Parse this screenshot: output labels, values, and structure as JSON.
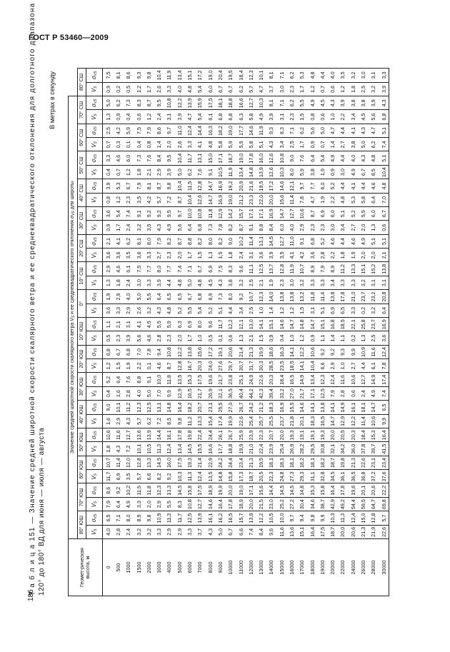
{
  "header": {
    "standard": "ГОСТ Р 53460—2009"
  },
  "page_number": "186",
  "caption": {
    "line1": "Т а б л и ц а 151 — Значение средней широтной скорости скалярного ветра и ее среднеквадратического отклонения для долготного диапазона от",
    "line2": "120° до 180° ВД для июня — июля — августа"
  },
  "units": "В метрах в секунду",
  "table": {
    "height_header": "Геомет-рическая высота, м",
    "group_header_prefix": "Значение средней широтной скорости скалярного ветра",
    "group_header_middle": "и ее среднеквадратического отклонения",
    "group_header_suffix": "для широты",
    "vs_symbol": "V",
    "vs_sub": "S",
    "sigma_symbol": "σ",
    "sigma_sub": "VS",
    "heights": [
      "0",
      "500",
      "1000",
      "1500",
      "2000",
      "3000",
      "4000",
      "5000",
      "6000",
      "7000",
      "8000",
      "9000",
      "10000",
      "11000",
      "12000",
      "13000",
      "14000",
      "15000",
      "16000",
      "17000",
      "18000",
      "19000",
      "20000",
      "22000",
      "24000",
      "26000",
      "28000",
      "30000"
    ],
    "latitudes": [
      {
        "label": "80° ЮШ",
        "vs": [
          "4,0",
          "2,8",
          "2,4",
          "3,2",
          "3,2",
          "3,3",
          "2,9",
          "2,9",
          "3,3",
          "3,7",
          "4,3",
          "5,0",
          "6,7",
          "6,6",
          "7,4",
          "8,4",
          "9,6",
          "11,6",
          "13,6",
          "15,1",
          "16,4",
          "17,5",
          "18,7",
          "20,0",
          "20,6",
          "21,3",
          "21,9",
          "22,6"
        ],
        "sigma": [
          "6,5",
          "7,1",
          "8,0",
          "8,9",
          "9,8",
          "10,9",
          "11,3",
          "11,7",
          "12,5",
          "13,9",
          "16,1",
          "16,2",
          "16,5",
          "15,7",
          "13,9",
          "12,2",
          "10,5",
          "10,0",
          "9,7",
          "9,4",
          "9,8",
          "9,9",
          "10,3",
          "11,3",
          "12,4",
          "15,0",
          "12,8",
          "5,7"
        ]
      },
      {
        "label": "70° ЮШ",
        "vs": [
          "7,9",
          "6,4",
          "4,9",
          "3,3",
          "2,0",
          "2,9",
          "5,5",
          "8,3",
          "10,8",
          "12,7",
          "14,6",
          "16,4",
          "17,8",
          "18,9",
          "20,0",
          "21,5",
          "23,0",
          "25,2",
          "27,2",
          "30,4",
          "34,6",
          "38,7",
          "42,9",
          "49,2",
          "54,4",
          "59,5",
          "64,7",
          "69,8"
        ],
        "sigma": [
          "8,6",
          "9,2",
          "10,2",
          "11,5",
          "11,8",
          "12,3",
          "13,3",
          "14,5",
          "15,8",
          "17,5",
          "18,9",
          "19,9",
          "20,0",
          "19,0",
          "17,1",
          "15,6",
          "14,4",
          "14,5",
          "14,5",
          "14,8",
          "15,3",
          "15,8",
          "16,4",
          "17,8",
          "19,6",
          "20,1",
          "20,6",
          "22,2"
        ]
      },
      {
        "label": "60° ЮШ",
        "vs": [
          "11,7",
          "6,9",
          "3,5",
          "5,7",
          "6,6",
          "8,2",
          "9,2",
          "10,3",
          "11,3",
          "12,4",
          "13,5",
          "14,8",
          "15,8",
          "17,3",
          "18,7",
          "20,5",
          "22,3",
          "24,8",
          "27,3",
          "29,3",
          "31,1",
          "32,8",
          "34,5",
          "36,1",
          "36,5",
          "36,8",
          "37,2",
          "37,6"
        ],
        "sigma": [
          "10,7",
          "11,4",
          "12,0",
          "12,8",
          "13,3",
          "14,5",
          "16,0",
          "17,5",
          "19,3",
          "21,4",
          "22,9",
          "24,2",
          "24,4",
          "23,4",
          "21,3",
          "19,5",
          "18,1",
          "18,1",
          "18,1",
          "18,2",
          "18,1",
          "18,2",
          "18,7",
          "19,8",
          "21,3",
          "22,6",
          "23,1",
          "23,4"
        ]
      },
      {
        "label": "50° ЮШ",
        "vs": [
          "1,8",
          "4,3",
          "7,2",
          "10,1",
          "10,5",
          "11,3",
          "12,4",
          "13,4",
          "14,5",
          "15,5",
          "16,6",
          "17,7",
          "18,8",
          "19,9",
          "21,0",
          "22,4",
          "23,9",
          "25,4",
          "26,9",
          "28,2",
          "29,5",
          "30,8",
          "32,1",
          "34,2",
          "36,0",
          "37,8",
          "39,7",
          "41,5"
        ],
        "sigma": [
          "10,6",
          "11,6",
          "12,7",
          "13,6",
          "13,9",
          "14,4",
          "16,1",
          "17,8",
          "19,8",
          "22,4",
          "24,4",
          "26,1",
          "26,7",
          "25,9",
          "23,9",
          "22,3",
          "20,7",
          "20,0",
          "19,3",
          "19,1",
          "19,1",
          "19,3",
          "20,0",
          "20,5",
          "20,3",
          "18,4",
          "15,3",
          "16,4"
        ]
      },
      {
        "label": "40° ЮШ",
        "vs": [
          "1,6",
          "2,9",
          "4,3",
          "5,7",
          "6,2",
          "7,2",
          "8,5",
          "9,8",
          "11,2",
          "13,3",
          "15,4",
          "17,4",
          "19,9",
          "22,6",
          "25,4",
          "25,7",
          "25,5",
          "23,7",
          "21,8",
          "20,1",
          "18,3",
          "16,5",
          "14,7",
          "12,9",
          "12,2",
          "11,4",
          "10,6",
          "9,9"
        ],
        "sigma": [
          "9,0",
          "10,1",
          "11,2",
          "12,3",
          "12,5",
          "13,1",
          "14,8",
          "16,4",
          "18,2",
          "20,7",
          "23,1",
          "25,5",
          "27,0",
          "26,7",
          "24,2",
          "21,2",
          "18,3",
          "16,9",
          "15,5",
          "14,6",
          "14,1",
          "13,8",
          "14,1",
          "14,9",
          "16,1",
          "18,1",
          "14,7",
          "6,5"
        ]
      },
      {
        "label": "30° ЮШ",
        "vs": [
          "0,4",
          "1,6",
          "2,8",
          "4,0",
          "5,0",
          "7,0",
          "9,9",
          "12,9",
          "16,5",
          "21,7",
          "26,9",
          "32,1",
          "36,5",
          "40,4",
          "44,2",
          "42,3",
          "39,4",
          "33,2",
          "27,0",
          "21,7",
          "17,1",
          "12,5",
          "7,9",
          "2,8",
          "0,6",
          "2,4",
          "4,9",
          "7,4"
        ],
        "sigma": [
          "5,2",
          "6,4",
          "7,6",
          "8,8",
          "9,1",
          "10,0",
          "11,8",
          "13,5",
          "15,3",
          "17,5",
          "19,6",
          "21,7",
          "23,8",
          "25,1",
          "24,9",
          "22,6",
          "20,3",
          "18,4",
          "16,5",
          "14,9",
          "13,4",
          "12,3",
          "12,4",
          "11,6",
          "10,6",
          "12,7",
          "14,9",
          "17,4"
        ]
      },
      {
        "label": "20° ЮШ",
        "vs": [
          "1,2",
          "1,5",
          "1,9",
          "2,2",
          "0,1",
          "4,6",
          "8,7",
          "12,8",
          "16,7",
          "20,3",
          "24,0",
          "27,6",
          "29,7",
          "30,7",
          "31,7",
          "30,3",
          "28,5",
          "23,5",
          "18,5",
          "14,1",
          "10,4",
          "6,6",
          "2,9",
          "1,0",
          "2,7",
          "4,4",
          "6,1",
          "7,8"
        ],
        "sigma": [
          "6,8",
          "6,7",
          "6,8",
          "7,0",
          "7,8",
          "9,4",
          "10,8",
          "12,2",
          "13,8",
          "15,6",
          "17,2",
          "19,1",
          "20,6",
          "21,4",
          "21,3",
          "19,9",
          "18,6",
          "16,3",
          "14,1",
          "12,2",
          "10,6",
          "9,2",
          "9,2",
          "9,3",
          "9,9",
          "10,9",
          "11,6",
          "12,4"
        ]
      },
      {
        "label": "10° ЮШ",
        "vs": [
          "0,5",
          "2,3",
          "3,9",
          "5,6",
          "4,6",
          "2,8",
          "2,3",
          "2,0",
          "1,7",
          "1,0",
          "0,5",
          "0,1",
          "0,6",
          "1,3",
          "2,1",
          "1,5",
          "0,9",
          "0,4",
          "1,0",
          "1,2",
          "0,9",
          "1,1",
          "1,4",
          "1,1",
          "0,2",
          "1,3",
          "2,5",
          "3,6"
        ],
        "sigma": [
          "1,1",
          "2,1",
          "3,1",
          "4,1",
          "4,5",
          "5,5",
          "5,9",
          "6,3",
          "6,9",
          "8,0",
          "9,6",
          "11,7",
          "12,2",
          "12,1",
          "13,0",
          "14,1",
          "15,1",
          "14,6",
          "14,7",
          "14,8",
          "14,7",
          "15,1",
          "16,8",
          "18,5",
          "22,1",
          "25,8",
          "23,7",
          "16,9"
        ]
      },
      {
        "label": "0°",
        "vs": [
          "3,6",
          "3,3",
          "2,9",
          "2,6",
          "3,2",
          "4,3",
          "4,8",
          "5,2",
          "5,5",
          "5,4",
          "5,2",
          "5,1",
          "4,4",
          "3,4",
          "2,5",
          "1,0",
          "1,4",
          "1,2",
          "1,2",
          "1,5",
          "3,1",
          "5,1",
          "6,9",
          "6,5",
          "3,3",
          "0,2",
          "3,2",
          "6,4"
        ],
        "sigma": [
          "1,9",
          "2,9",
          "4,0",
          "5,0",
          "5,5",
          "6,4",
          "6,5",
          "6,5",
          "6,7",
          "6,8",
          "6,9",
          "7,3",
          "8,0",
          "9,2",
          "10,7",
          "12,3",
          "14,0",
          "13,8",
          "13,8",
          "13,2",
          "11,8",
          "11,4",
          "13,8",
          "17,8",
          "21,0",
          "23,7",
          "23,2",
          "20,8"
        ]
      },
      {
        "label": "10° СШ",
        "vs": [
          "1,3",
          "1,8",
          "2,4",
          "3,0",
          "3,3",
          "3,9",
          "4,4",
          "4,8",
          "5,0",
          "4,8",
          "4,5",
          "4,3",
          "3,8",
          "3,2",
          "2,5",
          "2,1",
          "1,9",
          "2,3",
          "3,0",
          "3,2",
          "3,3",
          "3,3",
          "3,4",
          "3,3",
          "3,3",
          "3,2",
          "3,1",
          "3,1"
        ],
        "sigma": [
          "2,9",
          "4,6",
          "6,1",
          "7,5",
          "7,7",
          "8,0",
          "7,7",
          "7,4",
          "7,1",
          "6,7",
          "6,9",
          "7,5",
          "8,3",
          "9,6",
          "11,1",
          "12,5",
          "13,7",
          "12,8",
          "11,9",
          "10,7",
          "8,9",
          "7,9",
          "8,9",
          "11,2",
          "13,3",
          "15,1",
          "15,2",
          "13,8"
        ]
      },
      {
        "label": "20° СШ",
        "vs": [
          "3,6",
          "3,6",
          "3,5",
          "3,6",
          "3,3",
          "2,7",
          "2,3",
          "2,0",
          "1,7",
          "1,5",
          "1,3",
          "1,5",
          "1,8",
          "2,4",
          "3,1",
          "3,6",
          "3,9",
          "3,5",
          "4,1",
          "4,2",
          "3,6",
          "2,8",
          "2,2",
          "1,8",
          "1,9",
          "2,0",
          "2,0",
          "2,1"
        ],
        "sigma": [
          "2,1",
          "4,1",
          "6,2",
          "8,1",
          "8,0",
          "7,9",
          "8,2",
          "8,7",
          "8,8",
          "8,2",
          "8,0",
          "8,2",
          "9,0",
          "10,2",
          "11,4",
          "13,1",
          "14,5",
          "12,7",
          "11,0",
          "9,1",
          "6,8",
          "5,2",
          "4,6",
          "4,4",
          "4,6",
          "4,9",
          "5,1",
          "5,1"
        ]
      },
      {
        "label": "30° СШ",
        "vs": [
          "0,9",
          "1,7",
          "2,4",
          "3,2",
          "3,5",
          "4,3",
          "4,9",
          "5,6",
          "6,4",
          "6,8",
          "7,3",
          "7,8",
          "8,2",
          "8,7",
          "9,1",
          "8,8",
          "8,4",
          "6,0",
          "4,0",
          "2,9",
          "2,3",
          "2,3",
          "3,0",
          "3,4",
          "2,7",
          "2,0",
          "1,3",
          "0,6"
        ],
        "sigma": [
          "3,6",
          "5,4",
          "7,4",
          "9,1",
          "9,2",
          "9,2",
          "9,5",
          "9,7",
          "10,0",
          "10,8",
          "11,8",
          "12,9",
          "14,2",
          "15,7",
          "17,1",
          "17,1",
          "16,9",
          "14,7",
          "12,7",
          "10,6",
          "8,7",
          "6,9",
          "6,0",
          "5,1",
          "5,2",
          "5,5",
          "6,0",
          "6,7"
        ]
      },
      {
        "label": "40° СШ",
        "vs": [
          "0,8",
          "1,2",
          "2,3",
          "3,5",
          "4,2",
          "5,7",
          "7,2",
          "8,7",
          "10,4",
          "12,6",
          "14,7",
          "16,9",
          "19,0",
          "21,2",
          "23,3",
          "22,0",
          "20,0",
          "15,6",
          "11,4",
          "7,8",
          "4,7",
          "1,9",
          "2,2",
          "4,8",
          "5,3",
          "5,8",
          "6,4",
          "7,0"
        ],
        "sigma": [
          "3,9",
          "5,3",
          "6,7",
          "7,9",
          "8,1",
          "8,7",
          "9,8",
          "10,4",
          "11,5",
          "12,8",
          "14,7",
          "16,9",
          "19,2",
          "20,9",
          "21,6",
          "19,5",
          "17,2",
          "14,6",
          "12,1",
          "9,7",
          "7,7",
          "6,0",
          "5,2",
          "4,4",
          "4,1",
          "4,4",
          "4,6",
          "4,8"
        ]
      },
      {
        "label": "50° СШ",
        "vs": [
          "0,4",
          "0,7",
          "1,2",
          "1,8",
          "2,1",
          "2,9",
          "3,9",
          "5,0",
          "6,2",
          "7,6",
          "9,1",
          "10,5",
          "11,9",
          "13,4",
          "14,8",
          "13,9",
          "12,6",
          "10,3",
          "8,0",
          "5,9",
          "3,8",
          "1,9",
          "0,9",
          "3,0",
          "4,9",
          "6,7",
          "8,5",
          "10,4"
        ],
        "sigma": [
          "3,3",
          "4,6",
          "6,0",
          "7,3",
          "7,6",
          "8,4",
          "9,5",
          "10,4",
          "11,7",
          "13,1",
          "15,0",
          "17,1",
          "18,7",
          "19,0",
          "17,8",
          "16,0",
          "12,6",
          "10,8",
          "9,0",
          "7,6",
          "6,4",
          "5,4",
          "4,9",
          "4,4",
          "4,0",
          "4,3",
          "4,8",
          "5,1"
        ]
      },
      {
        "label": "60° СШ",
        "vs": [
          "0,7",
          "0,3",
          "0,1",
          "0,4",
          "0,8",
          "1,4",
          "2,0",
          "2,6",
          "3,3",
          "4,1",
          "4,8",
          "5,8",
          "5,9",
          "5,9",
          "5,8",
          "5,1",
          "4,3",
          "3,4",
          "2,5",
          "1,7",
          "0,9",
          "0,7",
          "1,4",
          "2,7",
          "3,8",
          "5,0",
          "6,2",
          "7,4"
        ],
        "sigma": [
          "2,5",
          "4,2",
          "5,9",
          "7,5",
          "7,9",
          "8,6",
          "9,7",
          "11,0",
          "12,4",
          "14,4",
          "16,3",
          "18,2",
          "19,0",
          "17,7",
          "14,6",
          "11,9",
          "9,3",
          "8,3",
          "7,1",
          "6,2",
          "5,6",
          "5,0",
          "4,7",
          "4,4",
          "4,1",
          "4,3",
          "4,7",
          "5,1"
        ]
      },
      {
        "label": "70° СШ",
        "vs": [
          "1,3",
          "0,9",
          "0,4",
          "0,6",
          "1,2",
          "2,4",
          "3,1",
          "3,9",
          "4,7",
          "5,4",
          "6,1",
          "6,8",
          "6,8",
          "6,3",
          "5,8",
          "4,9",
          "3,9",
          "3,1",
          "2,3",
          "1,5",
          "0,8",
          "0,6",
          "1,0",
          "2,2",
          "3,4",
          "4,5",
          "5,6",
          "6,8"
        ],
        "sigma": [
          "5,0",
          "6,2",
          "7,3",
          "8,3",
          "8,7",
          "9,5",
          "10,8",
          "12,2",
          "13,9",
          "15,9",
          "17,5",
          "18,1",
          "18,8",
          "16,6",
          "12,7",
          "10,3",
          "8,1",
          "7,1",
          "6,2",
          "5,5",
          "4,9",
          "4,5",
          "4,3",
          "3,9",
          "3,8",
          "3,8",
          "3,9",
          "4,3"
        ]
      },
      {
        "label": "80° СШ",
        "vs": [
          "0,9",
          "0,2",
          "0,5",
          "1,2",
          "1,7",
          "2,6",
          "3,3",
          "4,0",
          "4,8",
          "5,4",
          "6,0",
          "6,7",
          "6,7",
          "6,2",
          "5,7",
          "4,7",
          "3,7",
          "3,0",
          "2,3",
          "1,7",
          "1,2",
          "0,7",
          "0,6",
          "1,2",
          "1,8",
          "2,5",
          "3,2",
          "3,9"
        ],
        "sigma": [
          "7,5",
          "8,1",
          "8,6",
          "9,3",
          "9,8",
          "10,4",
          "11,9",
          "13,4",
          "15,1",
          "17,2",
          "19,0",
          "20,4",
          "19,5",
          "18,4",
          "12,3",
          "10,1",
          "8,1",
          "7,1",
          "6,2",
          "5,3",
          "4,8",
          "4,4",
          "4,0",
          "3,5",
          "3,2",
          "3,0",
          "3,1",
          "3,3"
        ]
      }
    ]
  }
}
